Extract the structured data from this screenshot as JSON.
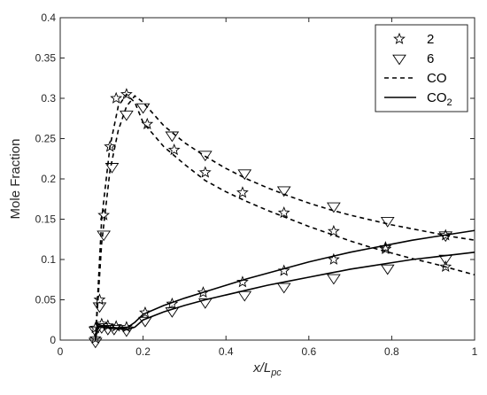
{
  "chart_data": {
    "type": "line",
    "xlabel": "x/L",
    "xlabel_sub": "pc",
    "ylabel": "Mole Fraction",
    "xlim": [
      0,
      1
    ],
    "ylim": [
      0,
      0.4
    ],
    "x_ticks": [
      0,
      0.2,
      0.4,
      0.6,
      0.8,
      1
    ],
    "x_tick_labels": [
      "0",
      "0.2",
      "0.4",
      "0.6",
      "0.8",
      "1"
    ],
    "y_ticks": [
      0,
      0.05,
      0.1,
      0.15,
      0.2,
      0.25,
      0.3,
      0.35,
      0.4
    ],
    "y_tick_labels": [
      "0",
      "0.05",
      "0.1",
      "0.15",
      "0.2",
      "0.25",
      "0.3",
      "0.35",
      "0.4"
    ],
    "grid": false,
    "legend_position": "top-right",
    "legend": [
      {
        "label": "2",
        "sub": "",
        "kind": "star-marker"
      },
      {
        "label": "6",
        "sub": "",
        "kind": "triangle-marker"
      },
      {
        "label": "CO",
        "sub": "",
        "kind": "dashed-line"
      },
      {
        "label": "CO",
        "sub": "2",
        "kind": "solid-line"
      }
    ],
    "lines": [
      {
        "group": "2",
        "species": "CO",
        "style": "dashed",
        "x": [
          0.085,
          0.09,
          0.1,
          0.12,
          0.14,
          0.16,
          0.18,
          0.2,
          0.25,
          0.3,
          0.35,
          0.4,
          0.45,
          0.5,
          0.55,
          0.6,
          0.65,
          0.7,
          0.75,
          0.8,
          0.85,
          0.9,
          0.95,
          1.0
        ],
        "y": [
          0.0,
          0.05,
          0.15,
          0.24,
          0.29,
          0.305,
          0.295,
          0.27,
          0.24,
          0.218,
          0.198,
          0.184,
          0.172,
          0.161,
          0.151,
          0.141,
          0.132,
          0.123,
          0.115,
          0.108,
          0.101,
          0.095,
          0.088,
          0.081
        ]
      },
      {
        "group": "6",
        "species": "CO",
        "style": "dashed",
        "x": [
          0.085,
          0.09,
          0.1,
          0.12,
          0.14,
          0.16,
          0.18,
          0.2,
          0.25,
          0.3,
          0.35,
          0.4,
          0.45,
          0.5,
          0.55,
          0.6,
          0.65,
          0.7,
          0.75,
          0.8,
          0.85,
          0.9,
          0.95,
          1.0
        ],
        "y": [
          0.0,
          0.04,
          0.12,
          0.21,
          0.26,
          0.29,
          0.303,
          0.295,
          0.266,
          0.245,
          0.228,
          0.213,
          0.2,
          0.189,
          0.179,
          0.17,
          0.162,
          0.155,
          0.149,
          0.143,
          0.138,
          0.133,
          0.128,
          0.124
        ]
      },
      {
        "group": "2",
        "species": "CO2",
        "style": "solid",
        "x": [
          0.085,
          0.09,
          0.1,
          0.12,
          0.14,
          0.16,
          0.18,
          0.2,
          0.25,
          0.3,
          0.35,
          0.4,
          0.45,
          0.5,
          0.55,
          0.6,
          0.65,
          0.7,
          0.75,
          0.8,
          0.85,
          0.9,
          0.95,
          1.0
        ],
        "y": [
          0.0,
          0.02,
          0.018,
          0.016,
          0.015,
          0.015,
          0.022,
          0.032,
          0.043,
          0.052,
          0.06,
          0.068,
          0.076,
          0.083,
          0.09,
          0.097,
          0.103,
          0.109,
          0.114,
          0.119,
          0.124,
          0.128,
          0.132,
          0.136
        ]
      },
      {
        "group": "6",
        "species": "CO2",
        "style": "solid",
        "x": [
          0.085,
          0.09,
          0.1,
          0.12,
          0.14,
          0.16,
          0.18,
          0.2,
          0.25,
          0.3,
          0.35,
          0.4,
          0.45,
          0.5,
          0.55,
          0.6,
          0.65,
          0.7,
          0.75,
          0.8,
          0.85,
          0.9,
          0.95,
          1.0
        ],
        "y": [
          0.0,
          0.018,
          0.016,
          0.015,
          0.014,
          0.013,
          0.016,
          0.025,
          0.035,
          0.043,
          0.05,
          0.056,
          0.062,
          0.068,
          0.073,
          0.078,
          0.083,
          0.088,
          0.092,
          0.096,
          0.1,
          0.103,
          0.106,
          0.109
        ]
      }
    ],
    "markers": [
      {
        "group": "2",
        "species": "CO",
        "shape": "star",
        "x": [
          0.085,
          0.095,
          0.105,
          0.12,
          0.135,
          0.16,
          0.21,
          0.275,
          0.35,
          0.44,
          0.54,
          0.66,
          0.785,
          0.93
        ],
        "y": [
          0.002,
          0.05,
          0.155,
          0.24,
          0.3,
          0.305,
          0.268,
          0.236,
          0.208,
          0.183,
          0.158,
          0.135,
          0.113,
          0.091
        ]
      },
      {
        "group": "6",
        "species": "CO",
        "shape": "triangle",
        "x": [
          0.085,
          0.095,
          0.105,
          0.125,
          0.16,
          0.2,
          0.27,
          0.35,
          0.445,
          0.54,
          0.66,
          0.79,
          0.93
        ],
        "y": [
          -0.002,
          0.042,
          0.131,
          0.215,
          0.28,
          0.289,
          0.254,
          0.23,
          0.207,
          0.186,
          0.166,
          0.148,
          0.13
        ]
      },
      {
        "group": "2",
        "species": "CO2",
        "shape": "star",
        "x": [
          0.085,
          0.1,
          0.115,
          0.135,
          0.16,
          0.205,
          0.27,
          0.345,
          0.44,
          0.54,
          0.66,
          0.785,
          0.93
        ],
        "y": [
          0.015,
          0.02,
          0.018,
          0.017,
          0.016,
          0.034,
          0.045,
          0.059,
          0.072,
          0.086,
          0.1,
          0.115,
          0.13
        ]
      },
      {
        "group": "6",
        "species": "CO2",
        "shape": "triangle",
        "x": [
          0.085,
          0.1,
          0.115,
          0.13,
          0.16,
          0.205,
          0.27,
          0.35,
          0.445,
          0.54,
          0.66,
          0.79,
          0.93
        ],
        "y": [
          0.012,
          0.016,
          0.014,
          0.014,
          0.012,
          0.024,
          0.036,
          0.047,
          0.056,
          0.066,
          0.077,
          0.089,
          0.101
        ]
      }
    ]
  }
}
